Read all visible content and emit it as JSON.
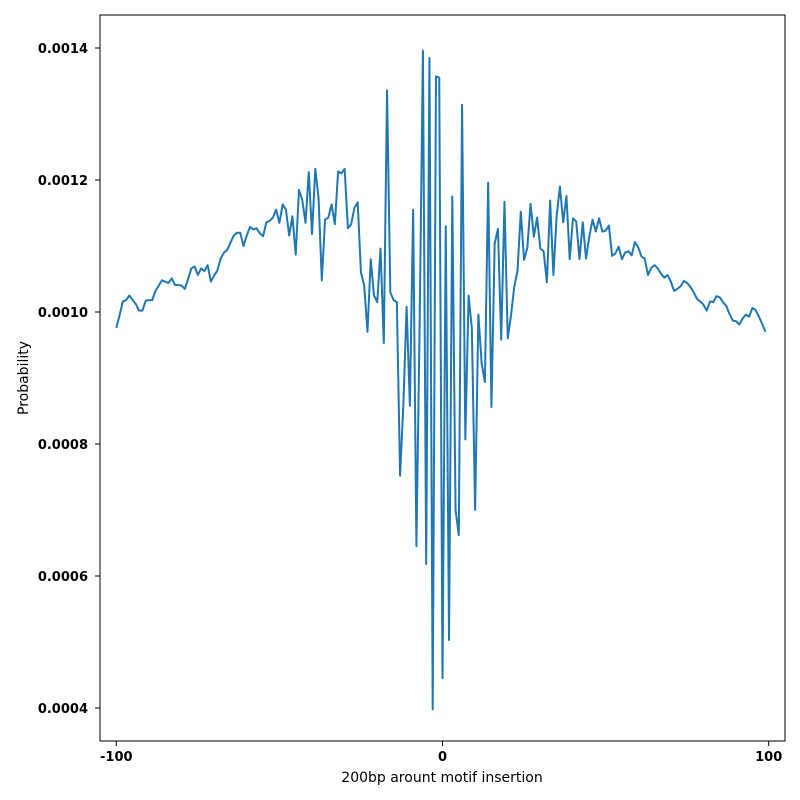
{
  "chart_data": {
    "type": "line",
    "xlabel": "200bp arount motif insertion",
    "ylabel": "Probability",
    "xlim": [
      -105,
      105
    ],
    "ylim": [
      0.00035,
      0.00145
    ],
    "x_ticks": [
      -100,
      0,
      100
    ],
    "x_tick_labels": [
      "-100",
      "0",
      "100"
    ],
    "y_ticks": [
      0.0004,
      0.0006,
      0.0008,
      0.001,
      0.0012,
      0.0014
    ],
    "y_tick_labels": [
      "0.0004",
      "0.0006",
      "0.0008",
      "0.0010",
      "0.0012",
      "0.0014"
    ],
    "grid": false,
    "series": [
      {
        "color": "#1f77b4",
        "x_start": -100,
        "x_step": 1,
        "values": [
          0.000976,
          0.000995,
          0.001016,
          0.001018,
          0.001025,
          0.001018,
          0.001012,
          0.001002,
          0.001002,
          0.001017,
          0.001018,
          0.001018,
          0.001032,
          0.00104,
          0.001048,
          0.001046,
          0.001044,
          0.001051,
          0.001041,
          0.001041,
          0.00104,
          0.001035,
          0.00105,
          0.001066,
          0.001069,
          0.001056,
          0.001066,
          0.001062,
          0.001071,
          0.001046,
          0.001055,
          0.001063,
          0.001081,
          0.00109,
          0.001094,
          0.001105,
          0.001116,
          0.00112,
          0.00112,
          0.0011,
          0.001116,
          0.001129,
          0.001125,
          0.001127,
          0.001119,
          0.001115,
          0.001136,
          0.001138,
          0.001143,
          0.001155,
          0.001135,
          0.001163,
          0.001155,
          0.001116,
          0.001145,
          0.001087,
          0.001185,
          0.00117,
          0.001135,
          0.001212,
          0.001118,
          0.001217,
          0.001173,
          0.001048,
          0.00114,
          0.001143,
          0.001163,
          0.001133,
          0.001213,
          0.00121,
          0.001217,
          0.001127,
          0.001133,
          0.001158,
          0.001166,
          0.00106,
          0.00104,
          0.00097,
          0.00108,
          0.001025,
          0.001015,
          0.001096,
          0.000953,
          0.001336,
          0.00103,
          0.001018,
          0.001015,
          0.000752,
          0.00086,
          0.001008,
          0.000858,
          0.001155,
          0.000645,
          0.000985,
          0.001396,
          0.000618,
          0.001385,
          0.000398,
          0.001357,
          0.001355,
          0.000445,
          0.00113,
          0.000503,
          0.001175,
          0.0007,
          0.000662,
          0.001314,
          0.000807,
          0.001025,
          0.000975,
          0.0007,
          0.000996,
          0.000922,
          0.000894,
          0.001196,
          0.000856,
          0.001104,
          0.001126,
          0.000958,
          0.001167,
          0.00096,
          0.000995,
          0.001038,
          0.001063,
          0.001152,
          0.001079,
          0.001097,
          0.001164,
          0.001114,
          0.001143,
          0.001096,
          0.001092,
          0.001045,
          0.001169,
          0.001056,
          0.001146,
          0.00119,
          0.001136,
          0.001176,
          0.00108,
          0.001142,
          0.001137,
          0.00108,
          0.001136,
          0.001081,
          0.001114,
          0.00114,
          0.001122,
          0.001142,
          0.001122,
          0.001123,
          0.001131,
          0.001085,
          0.001089,
          0.001099,
          0.00108,
          0.00109,
          0.001092,
          0.001086,
          0.001106,
          0.001098,
          0.001084,
          0.001081,
          0.001056,
          0.001067,
          0.001071,
          0.001066,
          0.001058,
          0.001052,
          0.001056,
          0.001046,
          0.001032,
          0.001035,
          0.001039,
          0.001047,
          0.001044,
          0.001038,
          0.00103,
          0.00102,
          0.001016,
          0.001011,
          0.001002,
          0.001016,
          0.001015,
          0.001024,
          0.001022,
          0.001015,
          0.001009,
          0.000997,
          0.000987,
          0.000986,
          0.000981,
          0.00099,
          0.000996,
          0.000993,
          0.001006,
          0.001003,
          0.000993,
          0.000982,
          0.00097
        ]
      }
    ]
  }
}
